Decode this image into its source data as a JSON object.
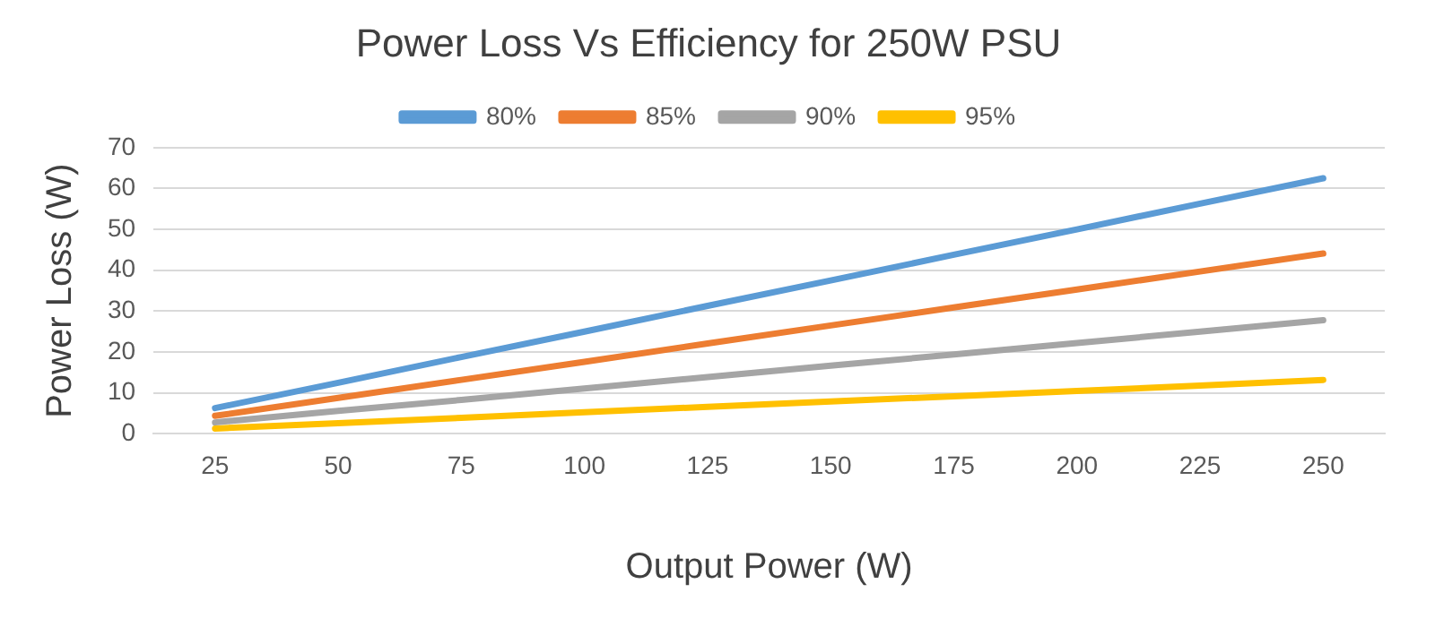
{
  "chart_data": {
    "type": "line",
    "title": "Power Loss Vs Efficiency for 250W PSU",
    "xlabel": "Output Power (W)",
    "ylabel": "Power Loss (W)",
    "categories": [
      "25",
      "50",
      "75",
      "100",
      "125",
      "150",
      "175",
      "200",
      "225",
      "250"
    ],
    "series": [
      {
        "name": "80%",
        "color": "#5b9bd5",
        "values": [
          6.3,
          12.5,
          18.8,
          25,
          31.3,
          37.5,
          43.8,
          50,
          56.3,
          62.5
        ]
      },
      {
        "name": "85%",
        "color": "#ed7d31",
        "values": [
          4.4,
          8.8,
          13.2,
          17.6,
          22.1,
          26.5,
          30.9,
          35.3,
          39.7,
          44.1
        ]
      },
      {
        "name": "90%",
        "color": "#a5a5a5",
        "values": [
          2.8,
          5.6,
          8.3,
          11.1,
          13.9,
          16.7,
          19.4,
          22.2,
          25,
          27.8
        ]
      },
      {
        "name": "95%",
        "color": "#ffc000",
        "values": [
          1.3,
          2.6,
          3.9,
          5.3,
          6.6,
          7.9,
          9.2,
          10.5,
          11.8,
          13.2
        ]
      }
    ],
    "ylim": [
      0,
      70
    ],
    "yticks": [
      0,
      10,
      20,
      30,
      40,
      50,
      60,
      70
    ],
    "grid": "y",
    "legend": "top",
    "marker": "none",
    "line_style": "solid"
  }
}
